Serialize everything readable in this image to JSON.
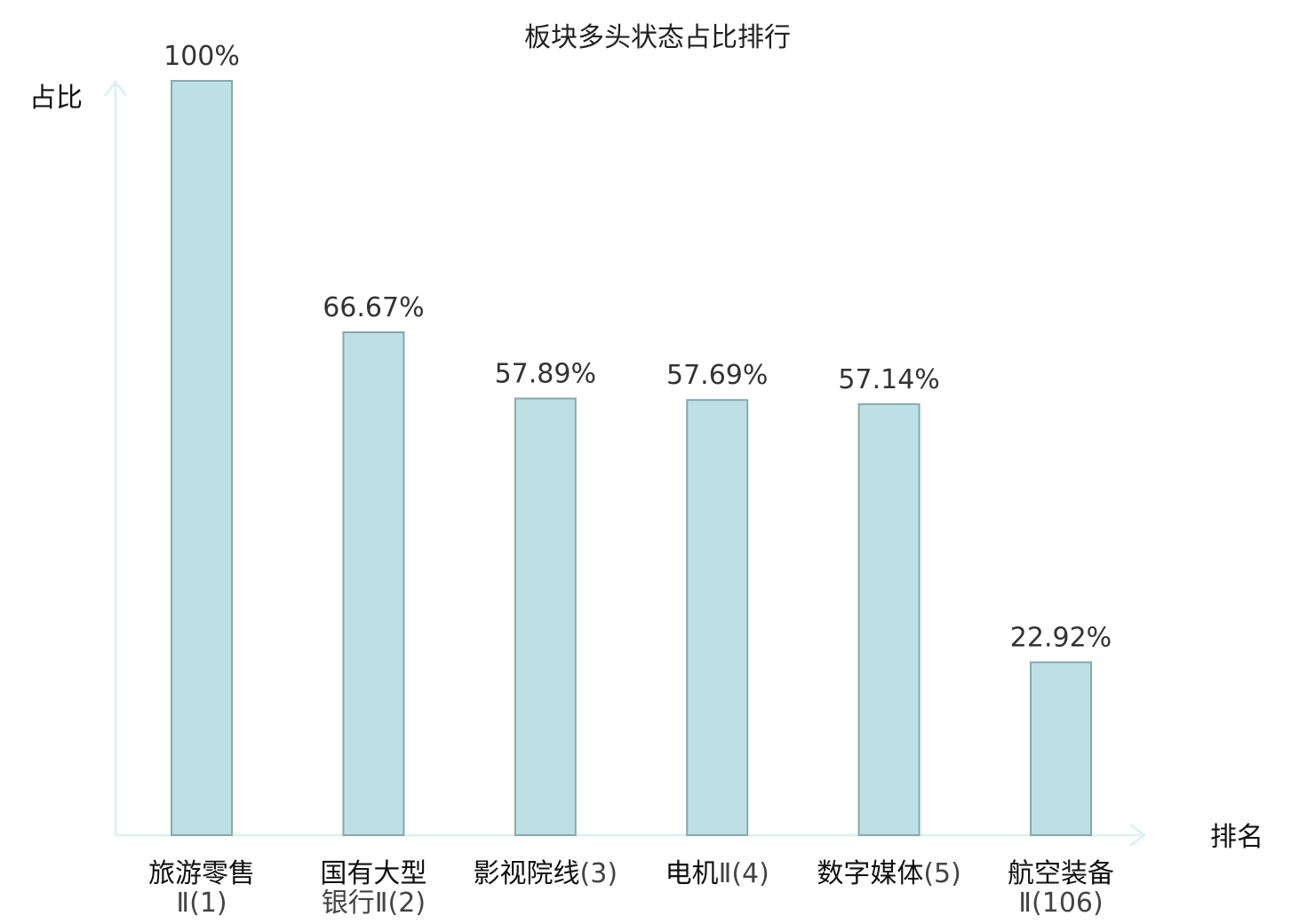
{
  "chart_data": {
    "type": "bar",
    "title": "板块多头状态占比排行",
    "ylabel": "占比",
    "xlabel": "排名",
    "ylim": [
      0,
      100
    ],
    "categories": [
      {
        "name": "旅游零售",
        "rank": "Ⅱ(1)",
        "highlight": false
      },
      {
        "name": "国有大型",
        "rank": "银行Ⅱ(2)",
        "highlight": false
      },
      {
        "name": "影视院线",
        "rank": "(3)",
        "highlight": false
      },
      {
        "name": "电机",
        "rank": "Ⅱ(4)",
        "highlight": false
      },
      {
        "name": "数字媒体",
        "rank": "(5)",
        "highlight": false
      },
      {
        "name": "航空装备",
        "rank": "Ⅱ(106)",
        "highlight": true
      }
    ],
    "values": [
      100,
      66.67,
      57.89,
      57.69,
      57.14,
      22.92
    ],
    "value_labels": [
      "100%",
      "66.67%",
      "57.89%",
      "57.69%",
      "57.14%",
      "22.92%"
    ],
    "colors": {
      "bar_fill": "#bce0e3",
      "bar_stroke": "#8aa9ab",
      "axis": "#e0f2f0",
      "highlight": "#e8141c"
    }
  }
}
